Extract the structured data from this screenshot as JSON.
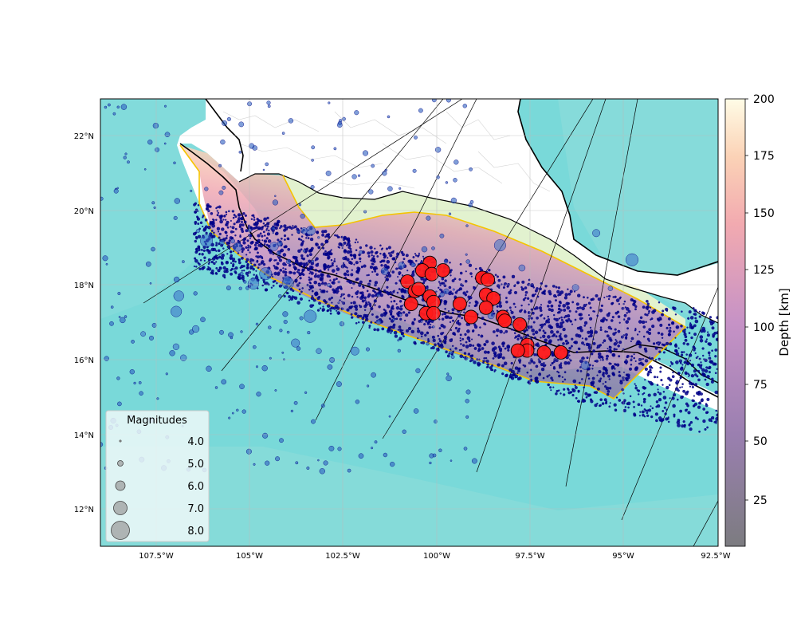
{
  "map": {
    "x_ticks": [
      "107.5°W",
      "105°W",
      "102.5°W",
      "100°W",
      "97.5°W",
      "95°W",
      "92.5°W"
    ],
    "y_ticks": [
      "22°N",
      "20°N",
      "18°N",
      "16°N",
      "14°N",
      "12°N"
    ],
    "extent": {
      "lon": [
        -109.0,
        -92.5
      ],
      "lat": [
        11.0,
        23.0
      ]
    },
    "colors": {
      "ocean": "#79d9d9",
      "deep_ocean": "#6fd4d6",
      "land": "#ffffff",
      "coastline": "#000000",
      "slab_outline": "#f5c400",
      "small_quakes": "#00008b",
      "large_quakes": "#ff1a1a",
      "scatter_blue": "#2c5fbf"
    }
  },
  "colorbar": {
    "label": "Depth [km]",
    "ticks": [
      "25",
      "50",
      "75",
      "100",
      "125",
      "150",
      "175",
      "200"
    ],
    "range": [
      4,
      200
    ],
    "colormap": "magma_r-like (dark gray → purple → pink → pale yellow)"
  },
  "legend": {
    "title": "Magnitudes",
    "entries": [
      {
        "label": "4.0",
        "magnitude": 4.0
      },
      {
        "label": "5.0",
        "magnitude": 5.0
      },
      {
        "label": "6.0",
        "magnitude": 6.0
      },
      {
        "label": "7.0",
        "magnitude": 7.0
      },
      {
        "label": "8.0",
        "magnitude": 8.0
      }
    ]
  },
  "large_events": [
    {
      "lon": -100.2,
      "lat": 18.6
    },
    {
      "lon": -100.4,
      "lat": 18.4
    },
    {
      "lon": -100.15,
      "lat": 18.3
    },
    {
      "lon": -99.85,
      "lat": 18.4
    },
    {
      "lon": -100.8,
      "lat": 18.1
    },
    {
      "lon": -100.6,
      "lat": 17.85
    },
    {
      "lon": -100.5,
      "lat": 17.9
    },
    {
      "lon": -100.2,
      "lat": 17.7
    },
    {
      "lon": -100.7,
      "lat": 17.5
    },
    {
      "lon": -100.1,
      "lat": 17.55
    },
    {
      "lon": -100.3,
      "lat": 17.25
    },
    {
      "lon": -100.1,
      "lat": 17.25
    },
    {
      "lon": -99.4,
      "lat": 17.5
    },
    {
      "lon": -99.1,
      "lat": 17.15
    },
    {
      "lon": -98.8,
      "lat": 18.2
    },
    {
      "lon": -98.65,
      "lat": 18.15
    },
    {
      "lon": -98.7,
      "lat": 17.75
    },
    {
      "lon": -98.5,
      "lat": 17.65
    },
    {
      "lon": -98.7,
      "lat": 17.4
    },
    {
      "lon": -98.25,
      "lat": 17.15
    },
    {
      "lon": -98.2,
      "lat": 17.05
    },
    {
      "lon": -97.8,
      "lat": 16.95
    },
    {
      "lon": -97.6,
      "lat": 16.4
    },
    {
      "lon": -97.6,
      "lat": 16.25
    },
    {
      "lon": -97.85,
      "lat": 16.25
    },
    {
      "lon": -97.15,
      "lat": 16.2
    },
    {
      "lon": -96.7,
      "lat": 16.2
    }
  ]
}
